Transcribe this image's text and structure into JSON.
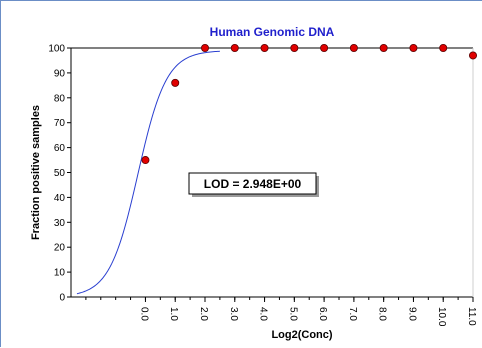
{
  "chart_data": {
    "type": "scatter",
    "title": "Human Genomic DNA",
    "xlabel": "Log2(Conc)",
    "ylabel": "Fraction positive samples",
    "x_tick_labels": [
      "0.0",
      "1.0",
      "2.0",
      "3.0",
      "4.0",
      "5.0",
      "6.0",
      "7.0",
      "8.0",
      "9.0",
      "10.0",
      "11.0"
    ],
    "y_ticks": [
      0,
      10,
      20,
      30,
      40,
      50,
      60,
      70,
      80,
      90,
      100
    ],
    "xlim": [
      -2.5,
      11.0
    ],
    "ylim": [
      0,
      100
    ],
    "points": {
      "x": [
        0,
        1,
        2,
        3,
        4,
        5,
        6,
        7,
        8,
        9,
        10,
        11
      ],
      "y": [
        55,
        86,
        100,
        100,
        100,
        100,
        100,
        100,
        100,
        100,
        100,
        97
      ]
    },
    "fit_curve": {
      "x_range": [
        -2.3,
        2.5
      ],
      "midpoint": -0.25,
      "slope": 2.1,
      "top": 99
    },
    "annotation": "LOD = 2.948E+00",
    "grid": false,
    "legend": "none",
    "colors": {
      "points": "#e00000",
      "curve": "#2a3fd0",
      "title": "#1f1fcc",
      "frame": "#6b8ec6",
      "axis": "#000000"
    }
  }
}
